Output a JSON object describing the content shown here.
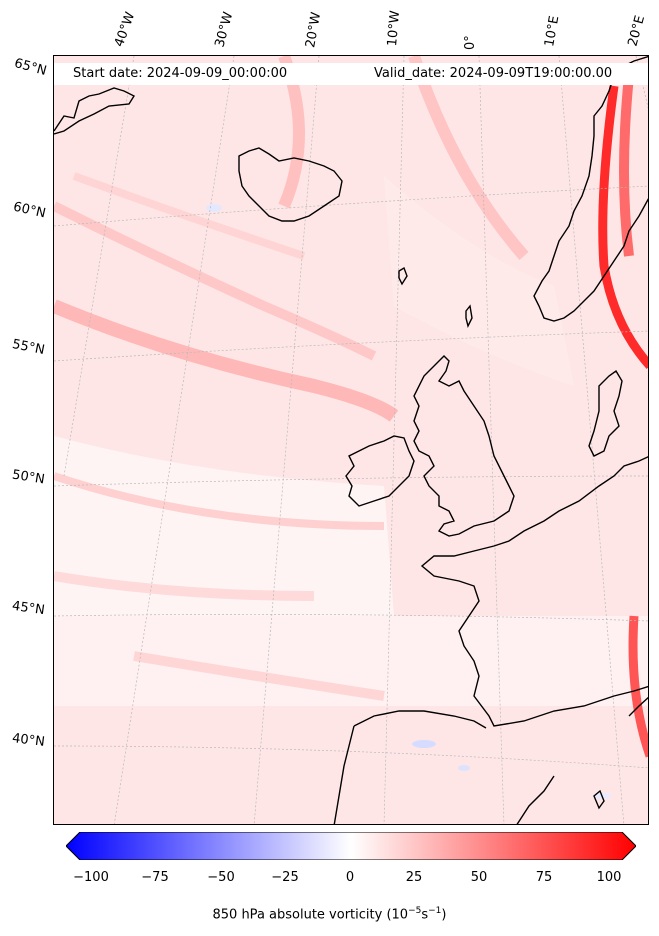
{
  "header": {
    "start_date": "Start date: 2024-09-09_00:00:00",
    "valid_date": "Valid_date: 2024-09-09T19:00:00.00"
  },
  "longitude_labels": [
    "40°W",
    "30°W",
    "20°W",
    "10°W",
    "0°",
    "10°E",
    "20°E"
  ],
  "latitude_labels": [
    "65°N",
    "60°N",
    "55°N",
    "50°N",
    "45°N",
    "40°N"
  ],
  "colorbar": {
    "ticks": [
      "−100",
      "−75",
      "−50",
      "−25",
      "0",
      "25",
      "50",
      "75",
      "100"
    ],
    "min": -100,
    "max": 100,
    "label_text": "850 hPa absolute vorticity (10",
    "label_exp1": "−5",
    "label_mid": "s",
    "label_exp2": "−1",
    "label_close": ")"
  },
  "colors": {
    "negative": "#0000ff",
    "neutral": "#ffffff",
    "positive": "#ff0000",
    "coastline": "#000000"
  }
}
